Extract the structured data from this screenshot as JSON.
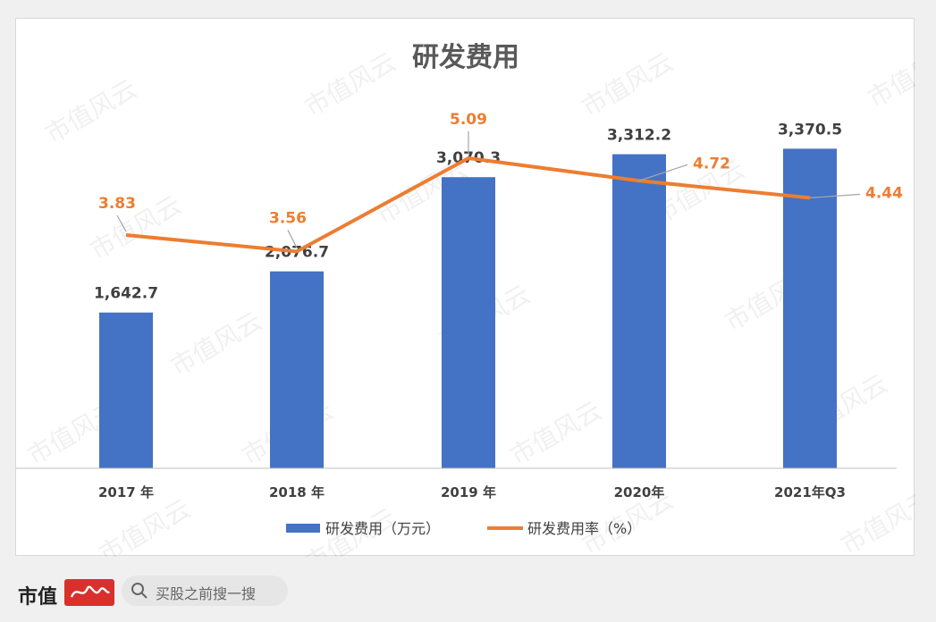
{
  "chart_data": {
    "type": "bar",
    "title": "研发费用",
    "categories": [
      "2017 年",
      "2018 年",
      "2019 年",
      "2020年",
      "2021年Q3"
    ],
    "series": [
      {
        "name": "研发费用（万元）",
        "type": "bar",
        "values": [
          1642.7,
          2076.7,
          3070.3,
          3312.2,
          3370.5
        ],
        "labels": [
          "1,642.7",
          "2,076.7",
          "3,070.3",
          "3,312.2",
          "3,370.5"
        ],
        "color": "#4472c4"
      },
      {
        "name": "研发费用率（%）",
        "type": "line",
        "values": [
          3.83,
          3.56,
          5.09,
          4.72,
          4.44
        ],
        "labels": [
          "3.83",
          "3.56",
          "5.09",
          "4.72",
          "4.44"
        ],
        "color": "#ed7d31"
      }
    ],
    "legend": "bottom",
    "grid": false
  },
  "watermark": "市值风云",
  "brand": {
    "logo": "市值"
  },
  "search": {
    "placeholder": "买股之前搜一搜"
  }
}
